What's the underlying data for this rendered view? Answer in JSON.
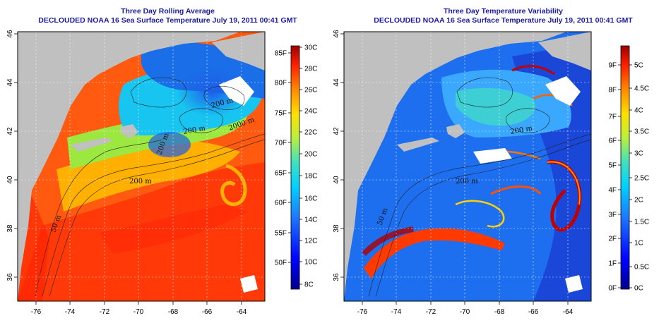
{
  "left": {
    "title_line1": "Three Day Rolling Average",
    "title_line2": "DECLOUDED NOAA 16 Sea Surface Temperature July 19, 2011 00:41 GMT",
    "x_ticks": [
      "-76",
      "-74",
      "-72",
      "-70",
      "-68",
      "-66",
      "-64"
    ],
    "y_ticks": [
      "36",
      "38",
      "40",
      "42",
      "44",
      "46"
    ],
    "colorbar_f": [
      "50F",
      "55F",
      "60F",
      "65F",
      "70F",
      "75F",
      "80F",
      "85F"
    ],
    "colorbar_c": [
      "8C",
      "10C",
      "12C",
      "14C",
      "16C",
      "18C",
      "20C",
      "22C",
      "24C",
      "26C",
      "28C",
      "30C"
    ],
    "contour_labels": [
      "200 m",
      "2000 m",
      "200 m",
      "200 m",
      "200 m",
      "50 m"
    ]
  },
  "right": {
    "title_line1": "Three Day Temperature Variability",
    "title_line2": "DECLOUDED NOAA 16 Sea Surface Temperature July 19, 2011 00:41 GMT",
    "x_ticks": [
      "-76",
      "-74",
      "-72",
      "-70",
      "-68",
      "-66",
      "-64"
    ],
    "y_ticks": [
      "36",
      "38",
      "40",
      "42",
      "44",
      "46"
    ],
    "colorbar_f": [
      "0F",
      "1F",
      "2F",
      "3F",
      "4F",
      "5F",
      "6F",
      "7F",
      "8F",
      "9F"
    ],
    "colorbar_c": [
      "0C",
      "0.5C",
      "1C",
      "1.5C",
      "2C",
      "2.5C",
      "3C",
      "3.5C",
      "4C",
      "4.5C",
      "5C"
    ],
    "contour_labels": [
      "200 m",
      "200 m",
      "50 m"
    ]
  },
  "colors": {
    "land": "#c0c0c0",
    "title": "#1a1aa6",
    "scale_low": "#00008b",
    "scale_high": "#9b0000"
  }
}
